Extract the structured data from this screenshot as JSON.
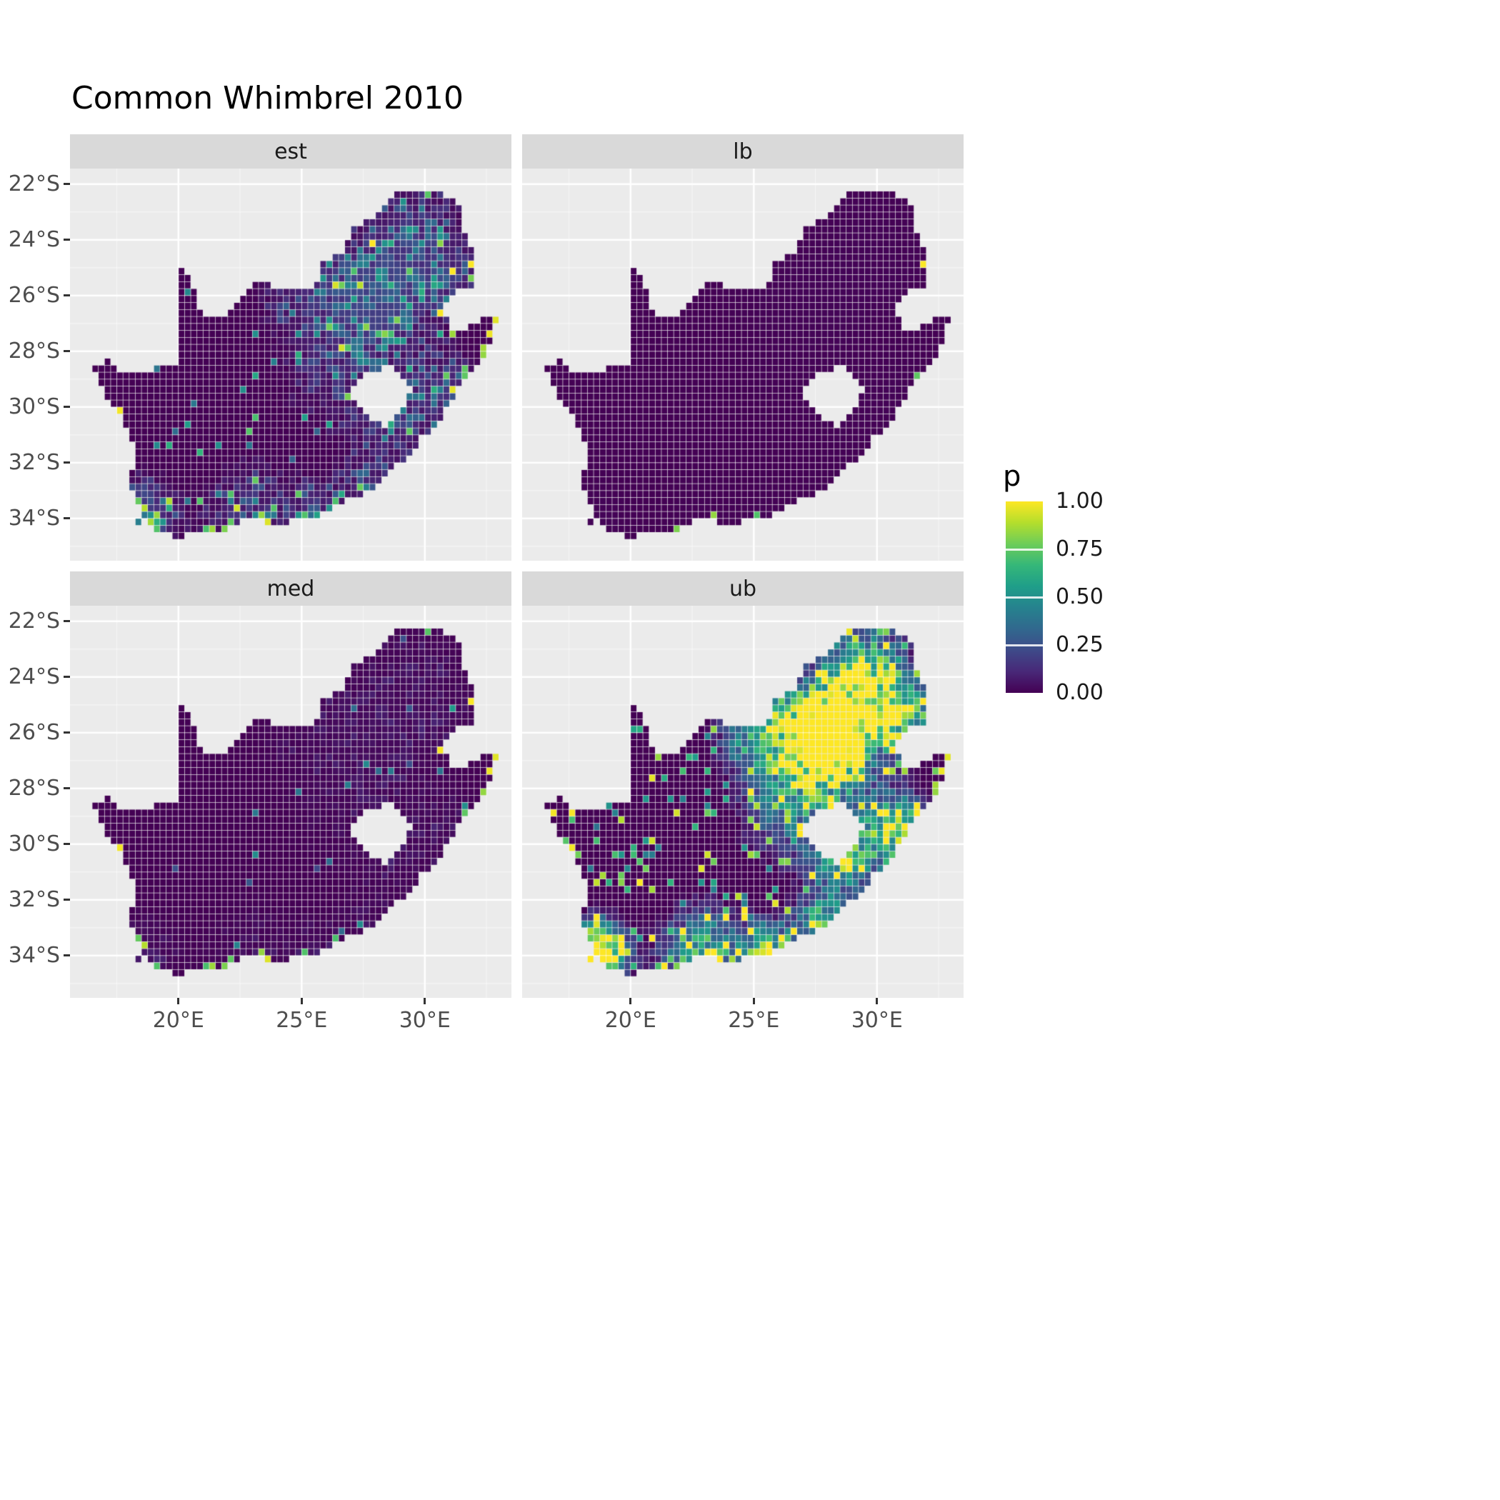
{
  "title": "Common Whimbrel 2010",
  "colors": {
    "background": "#FFFFFF",
    "panel": "#EBEBEB",
    "strip": "#D9D9D9",
    "grid_major": "#FFFFFF",
    "map_low": "#440154",
    "map_high": "#FDE725",
    "text": "#1A1A1A",
    "axis_text": "#4D4D4D"
  },
  "axes": {
    "x": {
      "labels": [
        "20°E",
        "25°E",
        "30°E"
      ],
      "values": [
        20,
        25,
        30
      ]
    },
    "y": {
      "labels": [
        "22°S",
        "24°S",
        "26°S",
        "28°S",
        "30°S",
        "32°S",
        "34°S"
      ],
      "values": [
        -22,
        -24,
        -26,
        -28,
        -30,
        -32,
        -34
      ]
    }
  },
  "legend": {
    "title": "p",
    "labels": [
      "1.00",
      "0.75",
      "0.50",
      "0.25",
      "0.00"
    ],
    "values": [
      1,
      0.75,
      0.5,
      0.25,
      0
    ]
  },
  "chart_data": {
    "type": "heatmap",
    "title": "Common Whimbrel 2010",
    "variable": "p",
    "range": [
      0,
      1
    ],
    "palette": "viridis",
    "legend_position": "right",
    "facets": [
      {
        "name": "est"
      },
      {
        "name": "lb"
      },
      {
        "name": "med"
      },
      {
        "name": "ub"
      }
    ],
    "x_domain": [
      15.6,
      33.5
    ],
    "y_domain": [
      -35.5,
      -21.4
    ],
    "cell_size_deg": 0.25,
    "seed": 42,
    "map_outline": [
      [
        16.45,
        -28.6
      ],
      [
        17.15,
        -28.3
      ],
      [
        17.75,
        -28.75
      ],
      [
        18.6,
        -28.85
      ],
      [
        19.3,
        -28.5
      ],
      [
        19.98,
        -28.42
      ],
      [
        19.98,
        -24.77
      ],
      [
        20.45,
        -25.35
      ],
      [
        20.72,
        -25.95
      ],
      [
        20.85,
        -26.4
      ],
      [
        21.35,
        -26.85
      ],
      [
        22.05,
        -26.6
      ],
      [
        22.7,
        -26.05
      ],
      [
        23.05,
        -25.6
      ],
      [
        23.55,
        -25.55
      ],
      [
        24.25,
        -25.77
      ],
      [
        24.95,
        -25.8
      ],
      [
        25.45,
        -25.72
      ],
      [
        25.65,
        -25.48
      ],
      [
        25.9,
        -24.75
      ],
      [
        26.45,
        -24.6
      ],
      [
        26.85,
        -24.25
      ],
      [
        26.95,
        -23.7
      ],
      [
        27.35,
        -23.4
      ],
      [
        27.95,
        -23.15
      ],
      [
        28.35,
        -22.7
      ],
      [
        29.05,
        -22.25
      ],
      [
        29.5,
        -22.2
      ],
      [
        30.3,
        -22.35
      ],
      [
        31.3,
        -22.4
      ],
      [
        31.6,
        -23.6
      ],
      [
        31.9,
        -24.2
      ],
      [
        31.98,
        -25.1
      ],
      [
        32.0,
        -25.65
      ],
      [
        31.35,
        -25.75
      ],
      [
        30.82,
        -26.35
      ],
      [
        30.92,
        -27.1
      ],
      [
        31.6,
        -27.3
      ],
      [
        32.15,
        -26.88
      ],
      [
        32.9,
        -26.85
      ],
      [
        32.55,
        -28.0
      ],
      [
        32.0,
        -28.65
      ],
      [
        31.25,
        -29.45
      ],
      [
        30.6,
        -30.55
      ],
      [
        29.9,
        -31.05
      ],
      [
        29.25,
        -31.85
      ],
      [
        28.45,
        -32.4
      ],
      [
        27.7,
        -33.05
      ],
      [
        26.85,
        -33.35
      ],
      [
        26.0,
        -33.75
      ],
      [
        25.65,
        -34.05
      ],
      [
        25.0,
        -34.0
      ],
      [
        24.2,
        -34.2
      ],
      [
        23.4,
        -34.1
      ],
      [
        22.6,
        -34.05
      ],
      [
        21.9,
        -34.4
      ],
      [
        21.0,
        -34.42
      ],
      [
        20.45,
        -34.5
      ],
      [
        20.0,
        -34.82
      ],
      [
        19.3,
        -34.45
      ],
      [
        18.9,
        -34.38
      ],
      [
        18.78,
        -34.08
      ],
      [
        18.33,
        -34.2
      ],
      [
        18.47,
        -33.68
      ],
      [
        18.25,
        -33.1
      ],
      [
        17.85,
        -32.82
      ],
      [
        18.32,
        -32.05
      ],
      [
        18.3,
        -31.5
      ],
      [
        17.8,
        -30.6
      ],
      [
        17.1,
        -29.6
      ],
      [
        16.75,
        -28.95
      ]
    ],
    "lesotho_hole": [
      [
        27.0,
        -29.6
      ],
      [
        27.3,
        -29.0
      ],
      [
        27.75,
        -28.68
      ],
      [
        28.6,
        -28.58
      ],
      [
        29.15,
        -28.9
      ],
      [
        29.45,
        -29.35
      ],
      [
        29.1,
        -30.1
      ],
      [
        28.4,
        -30.65
      ],
      [
        27.75,
        -30.45
      ],
      [
        27.3,
        -30.05
      ]
    ],
    "hotspots": [
      [
        28.1,
        -26.1,
        1.1,
        1.0
      ],
      [
        29.5,
        -23.9,
        1.2,
        0.5
      ],
      [
        31.0,
        -25.4,
        0.9,
        0.45
      ],
      [
        30.8,
        -29.6,
        1.0,
        0.5
      ],
      [
        26.8,
        -28.4,
        1.6,
        0.3
      ],
      [
        18.7,
        -33.9,
        0.8,
        0.7
      ],
      [
        22.9,
        -34.0,
        1.2,
        0.4
      ],
      [
        25.6,
        -33.8,
        0.7,
        0.45
      ],
      [
        27.8,
        -32.9,
        0.8,
        0.4
      ],
      [
        25.3,
        -25.8,
        1.2,
        0.35
      ],
      [
        28.6,
        -30.7,
        0.8,
        0.35
      ]
    ],
    "facet_params": {
      "est": {
        "fa": 0.18,
        "fb": 0.45,
        "th": 0.035,
        "sw": 0.8,
        "rim": 0.45
      },
      "lb": {
        "fa": 0.008,
        "fb": 0,
        "th": 0,
        "sw": 0,
        "rim": 0.1
      },
      "med": {
        "fa": 0.02,
        "fb": 0.08,
        "th": 0.012,
        "sw": 0.55,
        "rim": 0.35
      },
      "ub": {
        "fa": 1.0,
        "fb": 0,
        "th": 0.1,
        "sw": 1.05,
        "rim": 0.7
      }
    }
  }
}
